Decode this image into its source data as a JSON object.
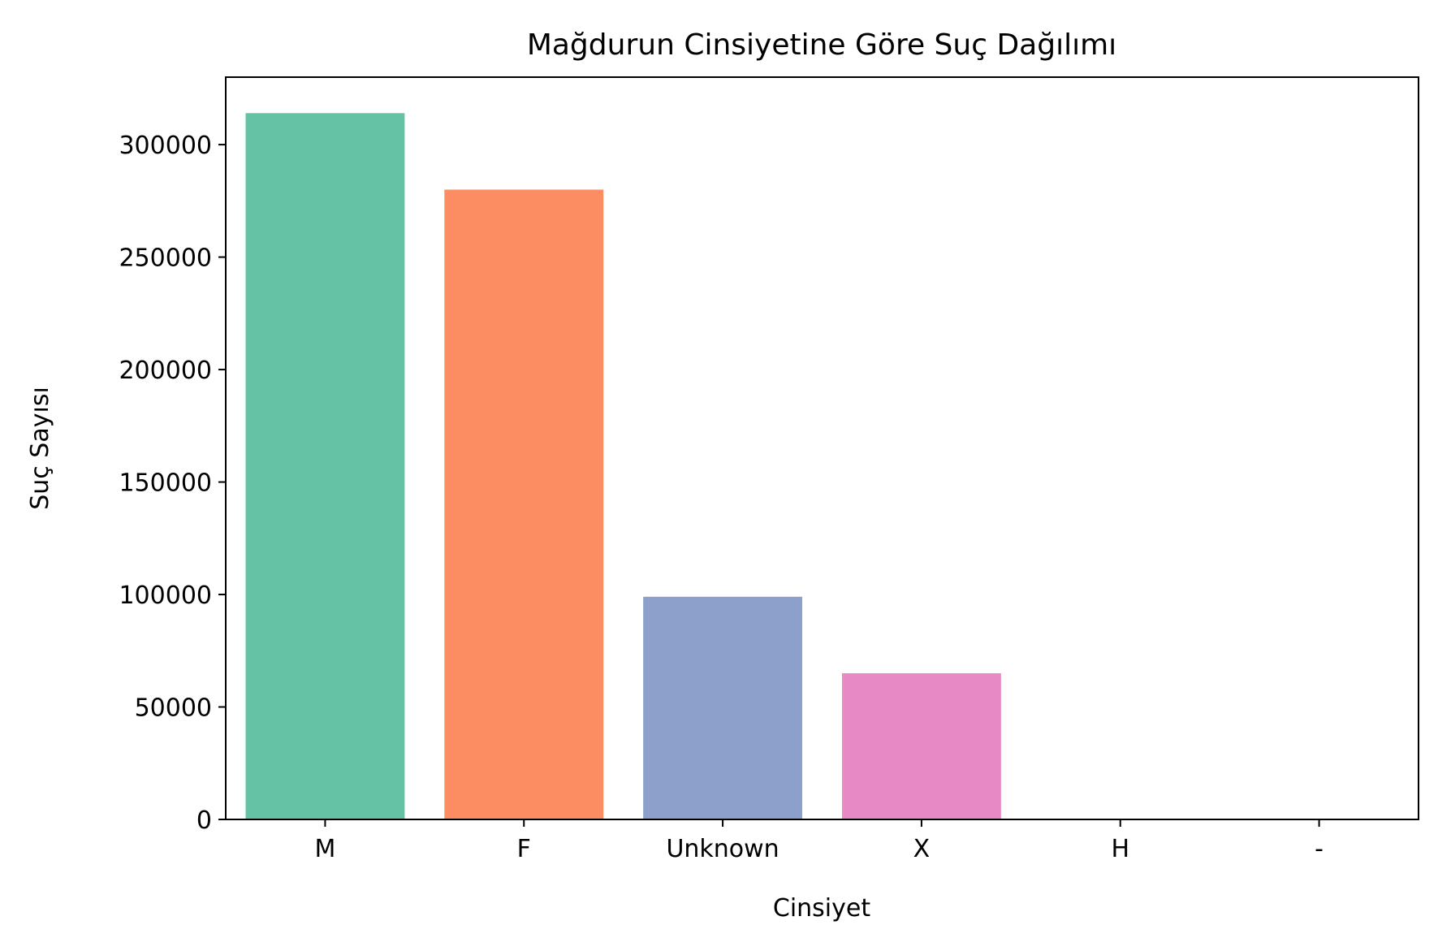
{
  "chart_data": {
    "type": "bar",
    "title": "Mağdurun Cinsiyetine Göre Suç Dağılımı",
    "xlabel": "Cinsiyet",
    "ylabel": "Suç Sayısı",
    "categories": [
      "M",
      "F",
      "Unknown",
      "X",
      "H",
      "-"
    ],
    "values": [
      314000,
      280000,
      99000,
      65000,
      60,
      1
    ],
    "colors": [
      "#66c2a5",
      "#fc8d62",
      "#8da0cb",
      "#e78ac3",
      "#a6d854",
      "#ffd92f"
    ],
    "ylim": [
      0,
      330000
    ],
    "yticks": [
      0,
      50000,
      100000,
      150000,
      200000,
      250000,
      300000
    ],
    "ytick_labels": [
      "0",
      "50000",
      "100000",
      "150000",
      "200000",
      "250000",
      "300000"
    ],
    "grid": false,
    "legend": "none"
  }
}
